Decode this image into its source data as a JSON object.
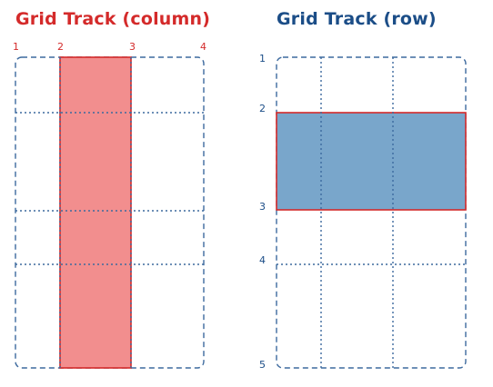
{
  "colors": {
    "column_title": "#d42a2a",
    "row_title": "#1b4d87",
    "column_numbers": "#d42a2a",
    "row_numbers": "#1b4d87",
    "grid_line": "#3d6a9e",
    "column_fill": "#f28e8e",
    "row_fill": "#79a6cb",
    "highlight_border": "#d42a2a"
  },
  "column_diagram": {
    "title": "Grid Track (column)",
    "line_labels": [
      "1",
      "2",
      "3",
      "4"
    ],
    "highlighted_track": "column 2"
  },
  "row_diagram": {
    "title": "Grid Track (row)",
    "line_labels": [
      "1",
      "2",
      "3",
      "4",
      "5"
    ],
    "highlighted_track": "row 2"
  }
}
